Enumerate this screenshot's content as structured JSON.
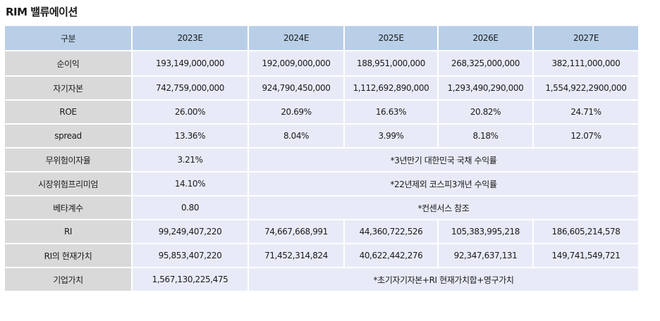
{
  "title": "RIM 밸류에이션",
  "table": {
    "headers": [
      "구분",
      "2023E",
      "2024E",
      "2025E",
      "2026E",
      "2027E"
    ],
    "rows": {
      "net_income": {
        "label": "순이익",
        "values": [
          "193,149,000,000",
          "192,009,000,000",
          "188,951,000,000",
          "268,325,000,000",
          "382,111,000,000"
        ]
      },
      "equity": {
        "label": "자기자본",
        "values": [
          "742,759,000,000",
          "924,790,450,000",
          "1,112,692,890,000",
          "1,293,490,290,000",
          "1,554,922,2900,000"
        ]
      },
      "roe": {
        "label": "ROE",
        "values": [
          "26.00%",
          "20.69%",
          "16.63%",
          "20.82%",
          "24.71%"
        ]
      },
      "spread": {
        "label": "spread",
        "values": [
          "13.36%",
          "8.04%",
          "3.99%",
          "8.18%",
          "12.07%"
        ]
      },
      "risk_free": {
        "label": "무위험이자율",
        "value": "3.21%",
        "note": "*3년만기 대한민국 국채 수익률"
      },
      "market_premium": {
        "label": "시장위험프리미엄",
        "value": "14.10%",
        "note": "*22년제외 코스피3개년 수익률"
      },
      "beta": {
        "label": "베타계수",
        "value": "0.80",
        "note": "*컨센서스 참조"
      },
      "ri": {
        "label": "RI",
        "values": [
          "99,249,407,220",
          "74,667,668,991",
          "44,360,722,526",
          "105,383,995,218",
          "186,605,214,578"
        ]
      },
      "ri_pv": {
        "label": "RI의 현재가치",
        "values": [
          "95,853,407,220",
          "71,452,314,824",
          "40,622,442,276",
          "92,347,637,131",
          "149,741,549,721"
        ]
      },
      "firm_value": {
        "label": "기업가치",
        "value": "1,567,130,225,475",
        "note": "*초기자기자본+RI 현재가치합+영구가치"
      }
    }
  },
  "colors": {
    "header_bg": "#b9cfe8",
    "label_bg": "#d9d9d9",
    "cell_bg": "#e8ebf7"
  }
}
